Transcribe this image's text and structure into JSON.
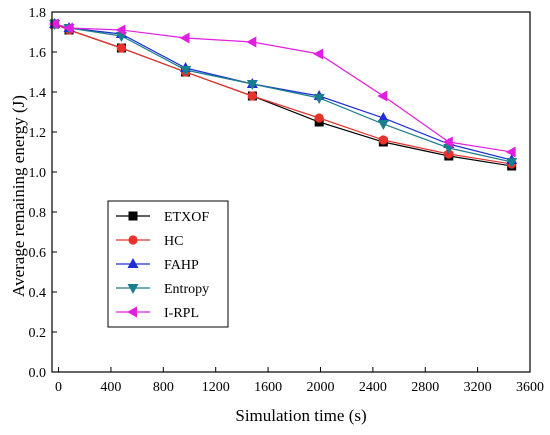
{
  "chart_data": {
    "type": "line",
    "xlabel": "Simulation time (s)",
    "ylabel": "Average remaining energy (J)",
    "xlim": [
      -50,
      3600
    ],
    "ylim": [
      0,
      1.8
    ],
    "xticks": [
      0,
      400,
      800,
      1200,
      1600,
      2000,
      2400,
      2800,
      3200,
      3600
    ],
    "yticks": [
      0.0,
      0.2,
      0.4,
      0.6,
      0.8,
      1.0,
      1.2,
      1.4,
      1.6,
      1.8
    ],
    "xtick_labels": [
      "0",
      "400",
      "800",
      "1200",
      "1600",
      "2000",
      "2400",
      "2800",
      "3200",
      "3600"
    ],
    "ytick_labels": [
      "0.0",
      "0.2",
      "0.4",
      "0.6",
      "0.8",
      "1.0",
      "1.2",
      "1.4",
      "1.6",
      "1.8"
    ],
    "legend_position": "lower-left",
    "series": [
      {
        "name": "ETXOF",
        "color": "#000000",
        "marker": "square",
        "x": [
          -30,
          80,
          480,
          970,
          1480,
          1990,
          2480,
          2980,
          3460
        ],
        "y": [
          1.74,
          1.71,
          1.62,
          1.5,
          1.38,
          1.25,
          1.15,
          1.08,
          1.03
        ]
      },
      {
        "name": "HC",
        "color": "#e8322a",
        "marker": "circle",
        "x": [
          -30,
          80,
          480,
          970,
          1480,
          1990,
          2480,
          2980,
          3460
        ],
        "y": [
          1.74,
          1.71,
          1.62,
          1.5,
          1.38,
          1.27,
          1.16,
          1.09,
          1.04
        ]
      },
      {
        "name": "FAHP",
        "color": "#1f2fd6",
        "marker": "triangle-up",
        "x": [
          -30,
          80,
          480,
          970,
          1480,
          1990,
          2480,
          2980,
          3460
        ],
        "y": [
          1.74,
          1.72,
          1.69,
          1.52,
          1.44,
          1.38,
          1.27,
          1.14,
          1.06
        ]
      },
      {
        "name": "Entropy",
        "color": "#1a7f8c",
        "marker": "triangle-down",
        "x": [
          -30,
          80,
          480,
          970,
          1480,
          1990,
          2480,
          2980,
          3460
        ],
        "y": [
          1.74,
          1.72,
          1.68,
          1.51,
          1.44,
          1.37,
          1.24,
          1.12,
          1.05
        ]
      },
      {
        "name": "I-RPL",
        "color": "#e21ee0",
        "marker": "triangle-left",
        "x": [
          -30,
          80,
          480,
          970,
          1480,
          1990,
          2480,
          2980,
          3460
        ],
        "y": [
          1.74,
          1.72,
          1.71,
          1.67,
          1.65,
          1.59,
          1.38,
          1.15,
          1.1
        ]
      }
    ]
  }
}
